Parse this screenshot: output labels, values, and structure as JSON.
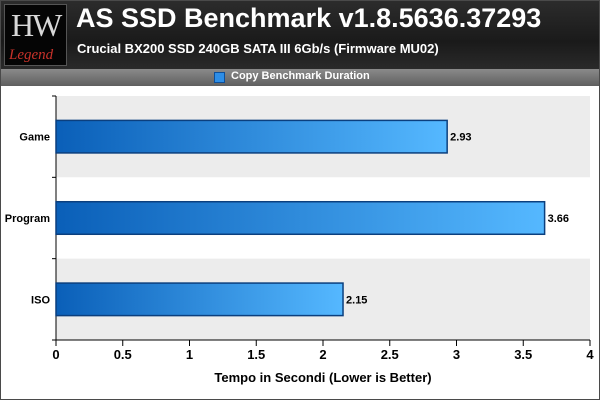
{
  "header": {
    "title": "AS SSD Benchmark v1.8.5636.37293",
    "subtitle": "Crucial BX200 SSD 240GB SATA III 6Gb/s (Firmware MU02)",
    "logo_mark": "HW",
    "logo_word": "Legend"
  },
  "legend": {
    "label": "Copy Benchmark Duration"
  },
  "colors": {
    "bar_light": "#55b8ff",
    "bar_dark": "#0a5fb8",
    "bar_border": "#0b3f7e",
    "band": "#ececec"
  },
  "chart_data": {
    "type": "bar",
    "orientation": "horizontal",
    "categories": [
      "Game",
      "Program",
      "ISO"
    ],
    "series": [
      {
        "name": "Copy Benchmark Duration",
        "values": [
          2.93,
          3.66,
          2.15
        ]
      }
    ],
    "value_labels": [
      "2.93",
      "3.66",
      "2.15"
    ],
    "xlabel": "Tempo in Secondi (Lower is Better)",
    "xlim": [
      0,
      4
    ],
    "xticks": [
      "0",
      "0.5",
      "1",
      "1.5",
      "2",
      "2.5",
      "3",
      "3.5",
      "4"
    ],
    "grid": "alternating horizontal bands"
  }
}
